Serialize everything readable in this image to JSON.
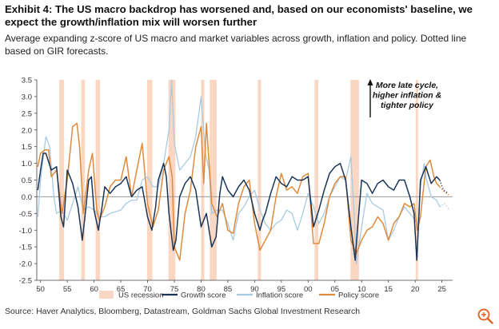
{
  "header": {
    "title": "Exhibit 4: The US macro backdrop has worsened and, based on our economists' baseline, we expect the growth/inflation mix will worsen further",
    "subtitle": "Average expanding z-score of US macro and market variables across growth, inflation and policy. Dotted line based on GIR forecasts."
  },
  "footer": {
    "source": "Source: Haver Analytics, Bloomberg, Datastream, Goldman Sachs Global Investment Research"
  },
  "colors": {
    "growth": "#1a3557",
    "inflation": "#a8cbe2",
    "policy": "#e08a3c",
    "recession": "#fad7c2",
    "zero": "#9a9a9a"
  },
  "chart_data": {
    "type": "line",
    "xlim": [
      1949.3,
      2027
    ],
    "ylim": [
      -2.5,
      3.5
    ],
    "yticks": [
      -2.5,
      -2.0,
      -1.5,
      -1.0,
      -0.5,
      0.0,
      0.5,
      1.0,
      1.5,
      2.0,
      2.5,
      3.0,
      3.5
    ],
    "ytick_labels": [
      "-2.5",
      "-2.0",
      "-1.5",
      "-1.0",
      "-0.5",
      "0.0",
      "0.5",
      "1.0",
      "1.5",
      "2.0",
      "2.5",
      "3.0",
      "3.5"
    ],
    "xticks": [
      1950,
      1955,
      1960,
      1965,
      1970,
      1975,
      1980,
      1985,
      1990,
      1995,
      2000,
      2005,
      2010,
      2015,
      2020,
      2025
    ],
    "xtick_labels": [
      "50",
      "55",
      "60",
      "65",
      "70",
      "75",
      "80",
      "85",
      "90",
      "95",
      "00",
      "05",
      "10",
      "15",
      "20",
      "25"
    ],
    "annotation": "More late cycle, higher inflation & tighter policy",
    "recessions": [
      [
        1953.5,
        1954.4
      ],
      [
        1957.6,
        1958.3
      ],
      [
        1960.3,
        1961.1
      ],
      [
        1969.9,
        1970.9
      ],
      [
        1973.9,
        1975.2
      ],
      [
        1980.0,
        1980.6
      ],
      [
        1981.6,
        1982.9
      ],
      [
        1990.6,
        1991.2
      ],
      [
        2001.2,
        2001.9
      ],
      [
        2007.9,
        2009.5
      ],
      [
        2020.1,
        2020.4
      ]
    ],
    "series": [
      {
        "name": "US recession",
        "style": "band"
      },
      {
        "name": "Growth score",
        "x": [
          1949.5,
          1950,
          1950.5,
          1951,
          1952,
          1953,
          1953.8,
          1954.3,
          1955,
          1955.5,
          1956,
          1957,
          1957.8,
          1958.3,
          1959,
          1959.5,
          1960,
          1960.8,
          1961.5,
          1962,
          1963,
          1964,
          1965,
          1966,
          1967,
          1968,
          1969,
          1970,
          1970.8,
          1971.5,
          1972,
          1973,
          1973.5,
          1974,
          1974.8,
          1975.3,
          1976,
          1977,
          1978,
          1979,
          1980,
          1980.5,
          1981,
          1982,
          1982.8,
          1983.5,
          1984,
          1985,
          1986,
          1987,
          1988,
          1989,
          1990,
          1991,
          1991.5,
          1992,
          1993,
          1994,
          1995,
          1996,
          1997,
          1998,
          1999,
          2000,
          2001,
          2002,
          2003,
          2004,
          2005,
          2006,
          2007,
          2008,
          2008.8,
          2009.2,
          2010,
          2011,
          2012,
          2013,
          2014,
          2015,
          2016,
          2017,
          2018,
          2019,
          2019.8,
          2020.3,
          2020.7,
          2021,
          2022,
          2023,
          2024,
          2024.6
        ],
        "values": [
          0.2,
          0.8,
          1.3,
          1.3,
          0.8,
          0.9,
          -0.6,
          -0.9,
          0.8,
          0.6,
          0.4,
          -0.3,
          -1.3,
          -0.6,
          0.5,
          0.6,
          -0.4,
          -1.0,
          -0.3,
          0.3,
          0.1,
          0.3,
          0.4,
          0.6,
          0.0,
          0.2,
          0.3,
          -0.6,
          -1.0,
          -0.3,
          0.5,
          1.0,
          0.6,
          -0.5,
          -1.6,
          -1.3,
          0.0,
          0.4,
          0.6,
          0.2,
          -0.9,
          -0.7,
          -0.5,
          -1.5,
          -1.2,
          0.1,
          0.6,
          0.2,
          0.0,
          0.3,
          0.5,
          0.2,
          -0.5,
          -1.0,
          -0.7,
          -0.5,
          0.1,
          0.6,
          0.4,
          0.3,
          0.6,
          0.5,
          0.5,
          0.6,
          -0.9,
          -0.4,
          0.2,
          0.7,
          0.9,
          1.0,
          0.5,
          -0.9,
          -1.9,
          -1.0,
          0.5,
          0.4,
          0.1,
          0.4,
          0.5,
          0.3,
          0.2,
          0.5,
          0.5,
          0.0,
          -0.5,
          -1.9,
          -0.6,
          0.5,
          0.9,
          0.4,
          0.6,
          0.5
        ]
      },
      {
        "name": "Growth score forecast",
        "x": [
          2024.6,
          2025.3,
          2026.2
        ],
        "values": [
          0.5,
          0.2,
          0.1
        ]
      },
      {
        "name": "Inflation score",
        "x": [
          1949.5,
          1950,
          1951,
          1951.7,
          1952.5,
          1953,
          1954,
          1955,
          1956,
          1957,
          1958,
          1959,
          1960,
          1961,
          1962,
          1963,
          1965,
          1966,
          1967,
          1968,
          1969,
          1970,
          1971,
          1972,
          1973,
          1974,
          1974.5,
          1975,
          1976,
          1977,
          1978,
          1979,
          1980,
          1980.8,
          1981.5,
          1982,
          1983,
          1984,
          1985,
          1986,
          1987,
          1988,
          1989,
          1990,
          1991,
          1992,
          1993,
          1994,
          1995,
          1996,
          1997,
          1998,
          1999,
          2000,
          2001,
          2002,
          2003,
          2004,
          2005,
          2006,
          2007,
          2008,
          2008.7,
          2009,
          2010,
          2011,
          2012,
          2013,
          2014,
          2015,
          2016,
          2017,
          2018,
          2019,
          2020,
          2020.5,
          2021,
          2021.7,
          2022,
          2023,
          2024,
          2024.6
        ],
        "values": [
          -0.6,
          0.5,
          1.8,
          1.5,
          0.0,
          -0.5,
          -0.4,
          -0.7,
          -0.2,
          0.3,
          -0.4,
          -0.3,
          -0.4,
          -0.6,
          -0.6,
          -0.5,
          -0.4,
          -0.2,
          -0.1,
          -0.1,
          0.5,
          0.6,
          0.3,
          0.3,
          1.0,
          2.0,
          3.5,
          1.6,
          0.8,
          1.0,
          1.2,
          1.8,
          3.0,
          1.3,
          0.8,
          -0.5,
          -0.4,
          -0.4,
          -0.8,
          -1.3,
          -0.5,
          -0.3,
          0.0,
          0.2,
          -0.4,
          -0.8,
          -1.0,
          -0.8,
          -0.7,
          -0.4,
          -0.5,
          -1.0,
          -0.5,
          0.1,
          -0.3,
          -0.8,
          -0.5,
          0.0,
          0.3,
          0.6,
          0.5,
          1.2,
          -0.8,
          -2.0,
          -0.9,
          0.1,
          -0.2,
          -0.3,
          -0.4,
          -1.3,
          -1.0,
          -0.6,
          -0.3,
          -0.5,
          -0.7,
          -0.9,
          0.3,
          1.0,
          0.6,
          0.0,
          -0.1,
          -0.3
        ]
      },
      {
        "name": "Inflation score forecast",
        "x": [
          2024.6,
          2025.5,
          2026.4
        ],
        "values": [
          -0.3,
          -0.2,
          -0.4
        ]
      },
      {
        "name": "Policy score",
        "x": [
          1949.5,
          1950,
          1950.8,
          1951.5,
          1952,
          1953,
          1954,
          1955,
          1956,
          1956.8,
          1957.3,
          1958,
          1959,
          1959.7,
          1960.5,
          1961,
          1962,
          1963,
          1964,
          1965,
          1966,
          1967,
          1968,
          1969,
          1970,
          1971,
          1972,
          1973,
          1974,
          1974.6,
          1975,
          1976,
          1977,
          1978,
          1979,
          1980,
          1980.5,
          1981,
          1982,
          1983,
          1984,
          1985,
          1986,
          1987,
          1988,
          1989,
          1990,
          1991,
          1992,
          1993,
          1994,
          1995,
          1996,
          1997,
          1998,
          1999,
          2000,
          2001,
          2002,
          2003,
          2004,
          2005,
          2006,
          2007,
          2008,
          2009,
          2010,
          2011,
          2012,
          2013,
          2014,
          2015,
          2016,
          2017,
          2018,
          2019,
          2019.8,
          2020.4,
          2021,
          2022,
          2022.8,
          2023.5,
          2024,
          2024.6
        ],
        "values": [
          0.9,
          1.3,
          1.4,
          1.4,
          0.6,
          0.8,
          -0.5,
          0.5,
          2.1,
          2.2,
          1.5,
          -0.5,
          0.8,
          1.3,
          -0.4,
          -0.7,
          -0.3,
          0.3,
          0.5,
          0.5,
          1.2,
          0.0,
          0.8,
          1.6,
          -0.2,
          -0.9,
          -0.4,
          0.8,
          1.2,
          0.6,
          -1.5,
          -1.9,
          -0.5,
          0.2,
          1.5,
          2.1,
          0.4,
          2.2,
          -0.2,
          -0.6,
          -0.2,
          -1.0,
          -1.1,
          -0.2,
          0.3,
          0.5,
          -0.8,
          -1.6,
          -1.3,
          -1.0,
          0.0,
          0.7,
          0.2,
          0.3,
          0.1,
          0.6,
          0.7,
          -1.4,
          -1.4,
          -0.8,
          0.0,
          0.4,
          0.6,
          0.6,
          -1.3,
          -1.7,
          -1.3,
          -1.0,
          -0.9,
          -0.6,
          -0.8,
          -1.3,
          -0.8,
          -0.6,
          -0.2,
          -0.3,
          -0.2,
          -1.0,
          -0.6,
          0.9,
          1.1,
          0.6,
          0.4,
          0.3
        ]
      },
      {
        "name": "Policy score forecast",
        "x": [
          2024.6,
          2025.4,
          2026.3
        ],
        "values": [
          0.3,
          0.15,
          0.05
        ]
      }
    ]
  }
}
